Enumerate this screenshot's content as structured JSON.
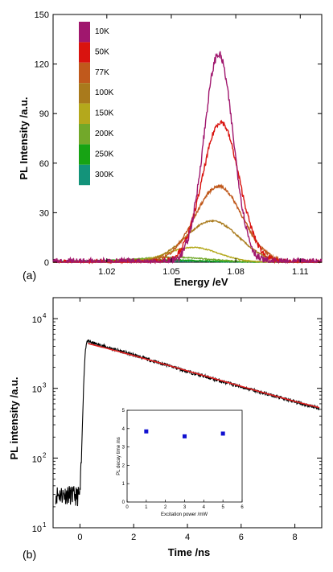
{
  "chart_data": [
    {
      "type": "line",
      "panel_label": "(a)",
      "xlabel": "Energy /eV",
      "ylabel": "PL Intensity /a.u.",
      "xlim": [
        0.995,
        1.12
      ],
      "ylim": [
        0,
        150
      ],
      "xticks": [
        1.02,
        1.05,
        1.08,
        1.11
      ],
      "xtick_labels": [
        "1.02",
        "1.05",
        "1.08",
        "1.11"
      ],
      "yticks": [
        0,
        30,
        60,
        90,
        120,
        150
      ],
      "ytick_labels": [
        "0",
        "30",
        "60",
        "90",
        "120",
        "150"
      ],
      "legend_position": "top-left",
      "series": [
        {
          "name": "10K",
          "color": "#a0176e",
          "peak_x": 1.072,
          "peak_y": 126,
          "width": 0.0068
        },
        {
          "name": "50K",
          "color": "#d9130f",
          "peak_x": 1.073,
          "peak_y": 85,
          "width": 0.0085
        },
        {
          "name": "77K",
          "color": "#c0591c",
          "peak_x": 1.072,
          "peak_y": 46,
          "width": 0.011
        },
        {
          "name": "100K",
          "color": "#a97a1c",
          "peak_x": 1.069,
          "peak_y": 25,
          "width": 0.0125
        },
        {
          "name": "150K",
          "color": "#b4a81c",
          "peak_x": 1.06,
          "peak_y": 9,
          "width": 0.012
        },
        {
          "name": "200K",
          "color": "#72a82a",
          "peak_x": 1.05,
          "peak_y": 3,
          "width": 0.018
        },
        {
          "name": "250K",
          "color": "#17a314",
          "peak_x": 1.04,
          "peak_y": 1.5,
          "width": 0.025
        },
        {
          "name": "300K",
          "color": "#13937a",
          "peak_x": 1.03,
          "peak_y": 1.0,
          "width": 0.03
        }
      ]
    },
    {
      "type": "line",
      "panel_label": "(b)",
      "xlabel": "Time /ns",
      "ylabel": "PL intensity /a.u.",
      "xlim": [
        -1.0,
        9.0
      ],
      "ylim": [
        10,
        20000
      ],
      "yscale": "log",
      "xticks": [
        0,
        2,
        4,
        6,
        8
      ],
      "xtick_labels": [
        "0",
        "2",
        "4",
        "6",
        "8"
      ],
      "yticks": [
        10,
        100,
        1000,
        10000
      ],
      "ytick_labels": [
        "10",
        "10",
        "10",
        "10"
      ],
      "ytick_exponents": [
        "1",
        "2",
        "3",
        "4"
      ],
      "series": [
        {
          "name": "",
          "color": "#000000",
          "type": "measured",
          "x": [
            -0.9,
            -0.5,
            -0.1,
            0.0,
            0.05,
            0.1,
            0.15,
            0.2,
            0.25,
            0.3,
            1.0,
            2.0,
            3.0,
            4.0,
            5.0,
            6.0,
            7.0,
            8.0,
            8.9
          ],
          "y": [
            30,
            30,
            28,
            30,
            80,
            400,
            1500,
            3500,
            4700,
            4700,
            3900,
            3000,
            2300,
            1750,
            1350,
            1050,
            820,
            640,
            520
          ]
        },
        {
          "name": "",
          "color": "#e02020",
          "type": "fit",
          "x": [
            0.3,
            1.0,
            2.0,
            3.0,
            4.0,
            5.0,
            6.0,
            7.0,
            8.0,
            8.9
          ],
          "y": [
            4400,
            3750,
            2950,
            2300,
            1780,
            1380,
            1070,
            830,
            650,
            530
          ]
        }
      ],
      "inset": {
        "type": "scatter",
        "xlabel": "Excitation power /mW",
        "ylabel": "PL decay time /ns",
        "xlim": [
          0,
          6
        ],
        "ylim": [
          0,
          5
        ],
        "xticks": [
          0,
          1,
          2,
          3,
          4,
          5,
          6
        ],
        "xtick_labels": [
          "0",
          "1",
          "2",
          "3",
          "4",
          "5",
          "6"
        ],
        "yticks": [
          0,
          1,
          2,
          3,
          4,
          5
        ],
        "ytick_labels": [
          "0",
          "1",
          "2",
          "3",
          "4",
          "5"
        ],
        "marker_color": "#1010d0",
        "x": [
          1,
          3,
          5
        ],
        "y": [
          3.85,
          3.58,
          3.73
        ]
      }
    }
  ]
}
